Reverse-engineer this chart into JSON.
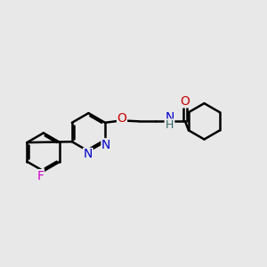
{
  "bg_color": "#e8e8e8",
  "bond_color": "#000000",
  "bond_width": 1.8,
  "atom_colors": {
    "N": "#0000cc",
    "O": "#cc0000",
    "F": "#cc00cc",
    "H": "#336666",
    "C": "#000000"
  },
  "font_size": 10,
  "figsize": [
    3.0,
    3.0
  ],
  "dpi": 100
}
